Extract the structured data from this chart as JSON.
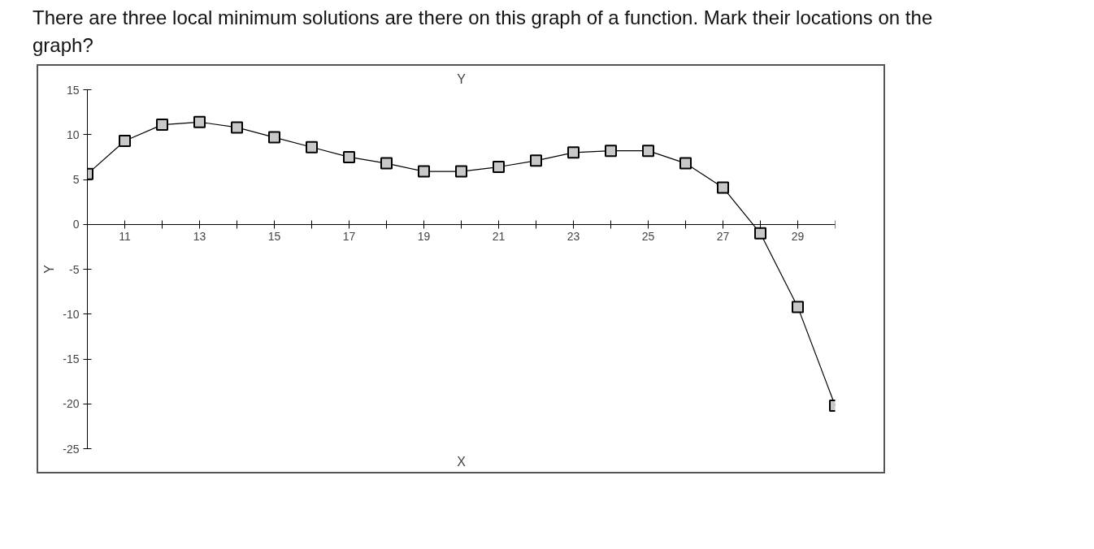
{
  "chart_data": {
    "type": "line",
    "title": "Y",
    "xlabel": "X",
    "ylabel": "Y",
    "annotations": [
      "There are three local minimum solutions are there on this graph of a function. Mark their locations on the graph?"
    ],
    "x": [
      10,
      11,
      12,
      13,
      14,
      15,
      16,
      17,
      18,
      19,
      20,
      21,
      22,
      23,
      24,
      25,
      26,
      27,
      28,
      29,
      30
    ],
    "series": [
      {
        "color": "#000000",
        "values": [
          5.6,
          9.3,
          11.1,
          11.4,
          10.8,
          9.7,
          8.6,
          7.5,
          6.8,
          5.9,
          5.9,
          6.4,
          7.1,
          8.0,
          8.2,
          8.2,
          6.8,
          4.1,
          -1.0,
          -9.2,
          -20.2
        ]
      }
    ],
    "xlim": [
      10,
      30
    ],
    "xticks": [
      11,
      {
        "value": 12,
        "label": null
      },
      13,
      {
        "value": 14,
        "label": null
      },
      15,
      {
        "value": 16,
        "label": null
      },
      17,
      {
        "value": 18,
        "label": null
      },
      19,
      {
        "value": 20,
        "label": null
      },
      21,
      {
        "value": 22,
        "label": null
      },
      23,
      {
        "value": 24,
        "label": null
      },
      25,
      {
        "value": 26,
        "label": null
      },
      27,
      {
        "value": 28,
        "label": null
      },
      29,
      {
        "value": 30,
        "label": null
      }
    ],
    "ylim": [
      -25,
      15
    ],
    "yticks": [
      -25,
      -20,
      -15,
      -10,
      -5,
      0,
      5,
      10,
      15
    ],
    "grid": false,
    "marker": "square",
    "line_style": "solid"
  }
}
